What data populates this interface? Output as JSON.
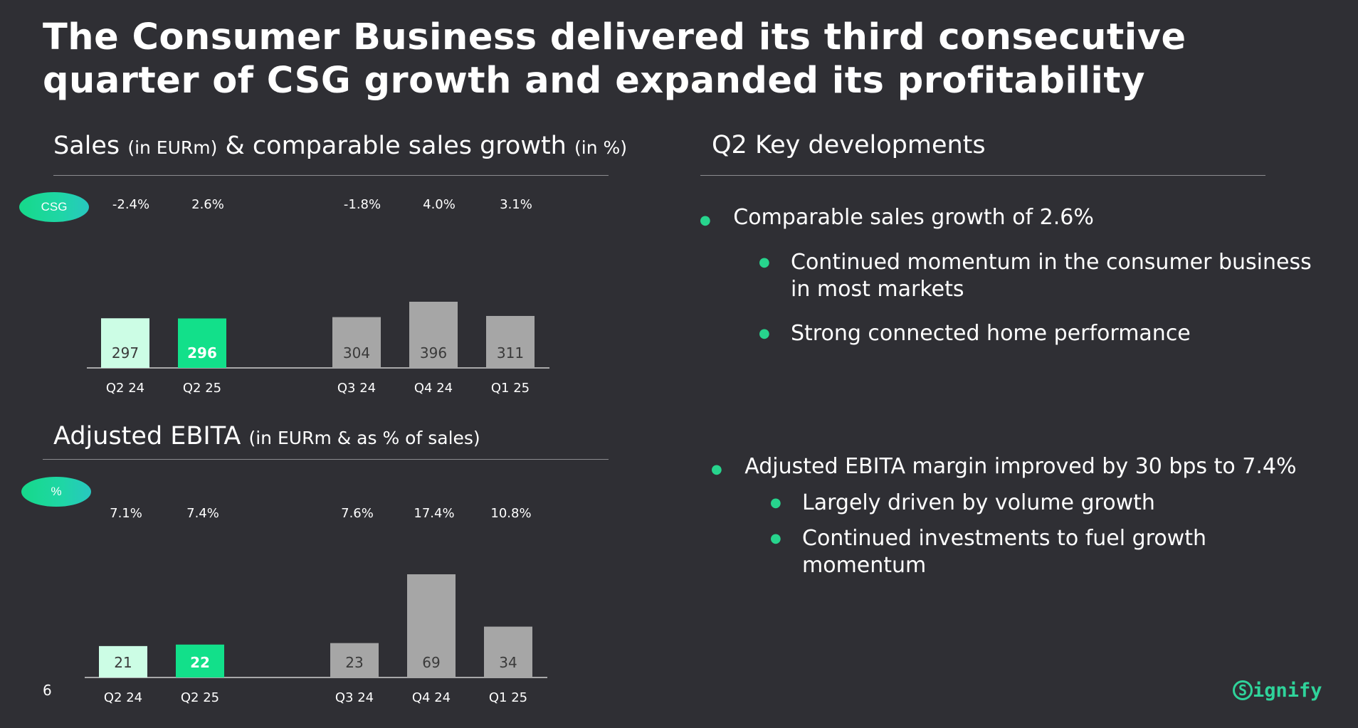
{
  "slide": {
    "title": "The Consumer Business delivered its third consecutive quarter of CSG growth and expanded its profitability",
    "page_number": "6",
    "logo_text": "ignify",
    "logo_glyph": "S"
  },
  "sales_section": {
    "heading_main_1": "Sales",
    "heading_small_1": "(in EURm)",
    "heading_main_2": "& comparable sales growth",
    "heading_small_2": "(in %)",
    "pill_label": "CSG"
  },
  "ebita_section": {
    "heading_main": "Adjusted EBITA",
    "heading_small": "(in EURm & as % of sales)",
    "pill_label": "%"
  },
  "key_developments": {
    "heading": "Q2 Key developments",
    "bullet1": "Comparable sales growth of 2.6%",
    "sub1a": "Continued momentum in the consumer business in most markets",
    "sub1b": "Strong connected home performance",
    "bullet2": "Adjusted EBITA margin improved by 30 bps to 7.4%",
    "sub2a": "Largely driven by volume growth",
    "sub2b": "Continued investments to fuel growth momentum"
  },
  "colors": {
    "background": "#2f2f34",
    "q2_24_bar": "#ccfde5",
    "q2_25_bar": "#12e08a",
    "other_bar": "#a6a6a6",
    "accent": "#27d48d"
  },
  "chart_data": [
    {
      "type": "bar",
      "title": "Sales (in EURm) & comparable sales growth (in %)",
      "categories": [
        "Q2 24",
        "Q2 25",
        "Q3 24",
        "Q4 24",
        "Q1 25"
      ],
      "values": [
        297,
        296,
        304,
        396,
        311
      ],
      "secondary_label": "CSG",
      "secondary_values": [
        "-2.4%",
        "2.6%",
        "-1.8%",
        "4.0%",
        "3.1%"
      ],
      "highlight": "Q2 25"
    },
    {
      "type": "bar",
      "title": "Adjusted EBITA (in EURm & as % of sales)",
      "categories": [
        "Q2 24",
        "Q2 25",
        "Q3 24",
        "Q4 24",
        "Q1 25"
      ],
      "values": [
        21,
        22,
        23,
        69,
        34
      ],
      "secondary_label": "%",
      "secondary_values": [
        "7.1%",
        "7.4%",
        "7.6%",
        "17.4%",
        "10.8%"
      ],
      "highlight": "Q2 25"
    }
  ]
}
